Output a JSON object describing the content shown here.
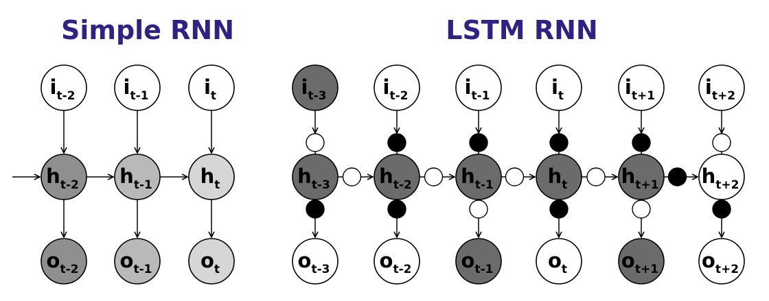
{
  "titles": {
    "simple": "Simple RNN",
    "lstm": "LSTM RNN"
  },
  "colors": {
    "title": "#2e2384",
    "dark": "#6b6b6b",
    "medium": "#8f8f8f",
    "light": "#b9b9b9",
    "lighter": "#d6d6d6",
    "white": "#ffffff",
    "gate_open": "#ffffff",
    "gate_closed": "#000000"
  },
  "simple_rnn": {
    "columns": [
      {
        "input": {
          "base": "i",
          "sub": "t-2",
          "fill": "white"
        },
        "hidden": {
          "base": "h",
          "sub": "t-2",
          "fill": "medium"
        },
        "output": {
          "base": "o",
          "sub": "t-2",
          "fill": "medium"
        }
      },
      {
        "input": {
          "base": "i",
          "sub": "t-1",
          "fill": "white"
        },
        "hidden": {
          "base": "h",
          "sub": "t-1",
          "fill": "light"
        },
        "output": {
          "base": "o",
          "sub": "t-1",
          "fill": "light"
        }
      },
      {
        "input": {
          "base": "i",
          "sub": "t",
          "fill": "white"
        },
        "hidden": {
          "base": "h",
          "sub": "t",
          "fill": "lighter"
        },
        "output": {
          "base": "o",
          "sub": "t",
          "fill": "lighter"
        }
      }
    ]
  },
  "lstm_rnn": {
    "columns": [
      {
        "input": {
          "base": "i",
          "sub": "t-3",
          "fill": "dark"
        },
        "hidden": {
          "base": "h",
          "sub": "t-3",
          "fill": "dark"
        },
        "output": {
          "base": "o",
          "sub": "t-3",
          "fill": "white"
        },
        "input_gate": "open",
        "output_gate": "closed",
        "forget_gate": "open"
      },
      {
        "input": {
          "base": "i",
          "sub": "t-2",
          "fill": "white"
        },
        "hidden": {
          "base": "h",
          "sub": "t-2",
          "fill": "dark"
        },
        "output": {
          "base": "o",
          "sub": "t-2",
          "fill": "white"
        },
        "input_gate": "closed",
        "output_gate": "closed",
        "forget_gate": "open"
      },
      {
        "input": {
          "base": "i",
          "sub": "t-1",
          "fill": "white"
        },
        "hidden": {
          "base": "h",
          "sub": "t-1",
          "fill": "dark"
        },
        "output": {
          "base": "o",
          "sub": "t-1",
          "fill": "dark"
        },
        "input_gate": "closed",
        "output_gate": "open",
        "forget_gate": "open"
      },
      {
        "input": {
          "base": "i",
          "sub": "t",
          "fill": "white"
        },
        "hidden": {
          "base": "h",
          "sub": "t",
          "fill": "dark"
        },
        "output": {
          "base": "o",
          "sub": "t",
          "fill": "white"
        },
        "input_gate": "closed",
        "output_gate": "closed",
        "forget_gate": "open"
      },
      {
        "input": {
          "base": "i",
          "sub": "t+1",
          "fill": "white"
        },
        "hidden": {
          "base": "h",
          "sub": "t+1",
          "fill": "dark"
        },
        "output": {
          "base": "o",
          "sub": "t+1",
          "fill": "dark"
        },
        "input_gate": "closed",
        "output_gate": "open",
        "forget_gate": "closed"
      },
      {
        "input": {
          "base": "i",
          "sub": "t+2",
          "fill": "white"
        },
        "hidden": {
          "base": "h",
          "sub": "t+2",
          "fill": "white"
        },
        "output": {
          "base": "o",
          "sub": "t+2",
          "fill": "white"
        },
        "input_gate": "open",
        "output_gate": "closed"
      }
    ]
  }
}
